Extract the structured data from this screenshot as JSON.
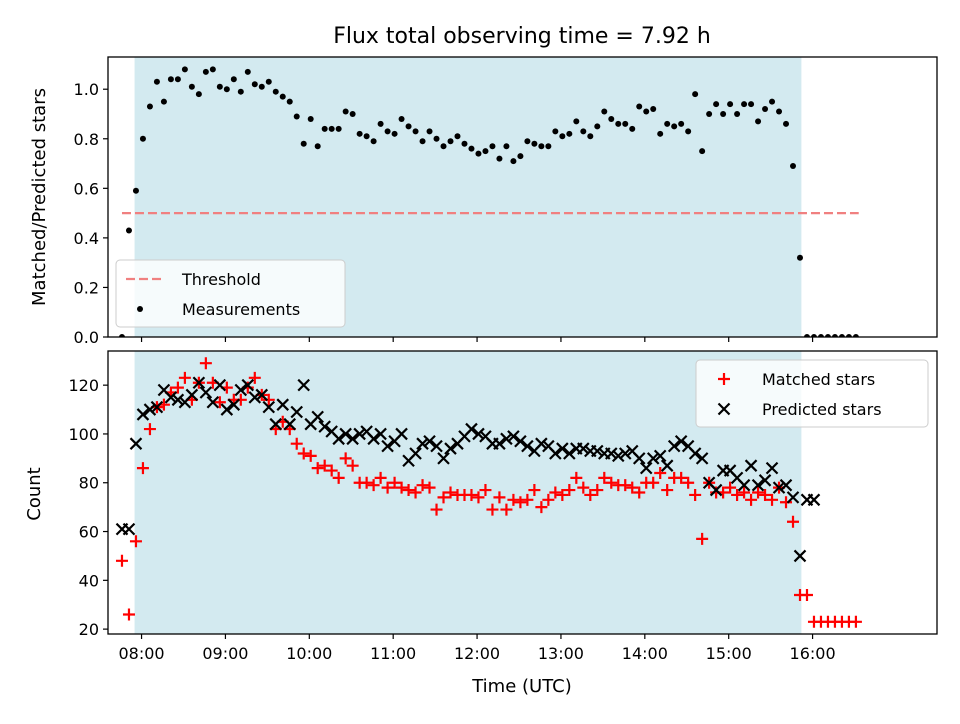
{
  "chart_data": [
    {
      "type": "scatter",
      "title": "Flux total observing time = 7.92 h",
      "ylabel": "Matched/Predicted stars",
      "xlabel": "",
      "ylim": [
        0,
        1.13
      ],
      "xlim": [
        "07:36",
        "17:29"
      ],
      "yticks": [
        "0.0",
        "0.2",
        "0.4",
        "0.6",
        "0.8",
        "1.0"
      ],
      "shaded_region": {
        "start": "07:55",
        "end": "15:52",
        "color": "#d3eaf0"
      },
      "threshold": {
        "name": "Threshold",
        "value": 0.5,
        "x_start": "07:46",
        "x_end": "16:33",
        "color": "#f08080"
      },
      "legend": {
        "position": "lower-left",
        "entries": [
          "Threshold",
          "Measurements"
        ]
      },
      "series": [
        {
          "name": "Measurements",
          "color": "#000000",
          "marker": "dot",
          "x": [
            "07:46",
            "07:51",
            "07:56",
            "08:01",
            "08:06",
            "08:11",
            "08:16",
            "08:21",
            "08:26",
            "08:31",
            "08:36",
            "08:41",
            "08:46",
            "08:51",
            "08:56",
            "09:01",
            "09:06",
            "09:11",
            "09:16",
            "09:21",
            "09:26",
            "09:31",
            "09:36",
            "09:41",
            "09:46",
            "09:51",
            "09:56",
            "10:01",
            "10:06",
            "10:11",
            "10:16",
            "10:21",
            "10:26",
            "10:31",
            "10:36",
            "10:41",
            "10:46",
            "10:51",
            "10:56",
            "11:01",
            "11:06",
            "11:11",
            "11:16",
            "11:21",
            "11:26",
            "11:31",
            "11:36",
            "11:41",
            "11:46",
            "11:51",
            "11:56",
            "12:01",
            "12:06",
            "12:11",
            "12:16",
            "12:21",
            "12:26",
            "12:31",
            "12:36",
            "12:41",
            "12:46",
            "12:51",
            "12:56",
            "13:01",
            "13:06",
            "13:11",
            "13:16",
            "13:21",
            "13:26",
            "13:31",
            "13:36",
            "13:41",
            "13:46",
            "13:51",
            "13:56",
            "14:01",
            "14:06",
            "14:11",
            "14:16",
            "14:21",
            "14:26",
            "14:31",
            "14:36",
            "14:41",
            "14:46",
            "14:51",
            "14:56",
            "15:01",
            "15:06",
            "15:11",
            "15:16",
            "15:21",
            "15:26",
            "15:31",
            "15:36",
            "15:41",
            "15:46",
            "15:51",
            "15:56",
            "16:01",
            "16:06",
            "16:11",
            "16:16",
            "16:21",
            "16:26",
            "16:31"
          ],
          "values": [
            0.0,
            0.43,
            0.59,
            0.8,
            0.93,
            1.03,
            0.95,
            1.04,
            1.04,
            1.08,
            1.01,
            0.98,
            1.07,
            1.08,
            1.01,
            1.0,
            1.04,
            0.99,
            1.07,
            1.02,
            1.01,
            1.03,
            0.99,
            0.97,
            0.95,
            0.89,
            0.78,
            0.88,
            0.77,
            0.84,
            0.84,
            0.84,
            0.91,
            0.9,
            0.82,
            0.81,
            0.79,
            0.86,
            0.83,
            0.82,
            0.88,
            0.85,
            0.83,
            0.79,
            0.83,
            0.8,
            0.77,
            0.79,
            0.81,
            0.78,
            0.76,
            0.74,
            0.75,
            0.77,
            0.72,
            0.77,
            0.71,
            0.73,
            0.79,
            0.78,
            0.77,
            0.77,
            0.83,
            0.81,
            0.82,
            0.87,
            0.83,
            0.81,
            0.85,
            0.91,
            0.88,
            0.86,
            0.86,
            0.84,
            0.93,
            0.91,
            0.92,
            0.82,
            0.86,
            0.85,
            0.86,
            0.83,
            0.98,
            0.75,
            0.9,
            0.94,
            0.9,
            0.94,
            0.9,
            0.94,
            0.94,
            0.87,
            0.92,
            0.95,
            0.91,
            0.86,
            0.69,
            0.32,
            0.0,
            0.0,
            0.0,
            0.0,
            0.0,
            0.0,
            0.0,
            0.0
          ]
        }
      ]
    },
    {
      "type": "scatter",
      "title": "",
      "ylabel": "Count",
      "xlabel": "Time (UTC)",
      "ylim": [
        18,
        134
      ],
      "xlim": [
        "07:36",
        "17:29"
      ],
      "yticks": [
        "20",
        "40",
        "60",
        "80",
        "100",
        "120"
      ],
      "xticks": [
        "08:00",
        "09:00",
        "10:00",
        "11:00",
        "12:00",
        "13:00",
        "14:00",
        "15:00",
        "16:00"
      ],
      "shaded_region": {
        "start": "07:55",
        "end": "15:52",
        "color": "#d3eaf0"
      },
      "legend": {
        "position": "top-right",
        "entries": [
          "Matched stars",
          "Predicted stars"
        ]
      },
      "series": [
        {
          "name": "Matched stars",
          "color": "#ff0000",
          "marker": "plus",
          "x": [
            "07:46",
            "07:51",
            "07:56",
            "08:01",
            "08:06",
            "08:11",
            "08:16",
            "08:21",
            "08:26",
            "08:31",
            "08:36",
            "08:41",
            "08:46",
            "08:51",
            "08:56",
            "09:01",
            "09:06",
            "09:11",
            "09:16",
            "09:21",
            "09:26",
            "09:31",
            "09:36",
            "09:41",
            "09:46",
            "09:51",
            "09:56",
            "10:01",
            "10:06",
            "10:11",
            "10:16",
            "10:21",
            "10:26",
            "10:31",
            "10:36",
            "10:41",
            "10:46",
            "10:51",
            "10:56",
            "11:01",
            "11:06",
            "11:11",
            "11:16",
            "11:21",
            "11:26",
            "11:31",
            "11:36",
            "11:41",
            "11:46",
            "11:51",
            "11:56",
            "12:01",
            "12:06",
            "12:11",
            "12:16",
            "12:21",
            "12:26",
            "12:31",
            "12:36",
            "12:41",
            "12:46",
            "12:51",
            "12:56",
            "13:01",
            "13:06",
            "13:11",
            "13:16",
            "13:21",
            "13:26",
            "13:31",
            "13:36",
            "13:41",
            "13:46",
            "13:51",
            "13:56",
            "14:01",
            "14:06",
            "14:11",
            "14:16",
            "14:21",
            "14:26",
            "14:31",
            "14:36",
            "14:41",
            "14:46",
            "14:51",
            "14:56",
            "15:01",
            "15:06",
            "15:11",
            "15:16",
            "15:21",
            "15:26",
            "15:31",
            "15:36",
            "15:41",
            "15:46",
            "15:51",
            "15:56",
            "16:01",
            "16:06",
            "16:11",
            "16:16",
            "16:21",
            "16:26",
            "16:31"
          ],
          "values": [
            48,
            26,
            56,
            86,
            102,
            111,
            112,
            117,
            119,
            123,
            114,
            121,
            129,
            121,
            113,
            119,
            114,
            114,
            119,
            123,
            116,
            114,
            102,
            105,
            102,
            96,
            92,
            91,
            86,
            87,
            85,
            82,
            90,
            87,
            80,
            80,
            79,
            82,
            78,
            80,
            78,
            77,
            76,
            79,
            78,
            69,
            74,
            76,
            75,
            75,
            75,
            74,
            77,
            69,
            74,
            69,
            73,
            72,
            73,
            77,
            70,
            73,
            76,
            75,
            77,
            82,
            78,
            75,
            77,
            82,
            80,
            79,
            79,
            78,
            76,
            80,
            80,
            84,
            77,
            82,
            82,
            80,
            75,
            57,
            80,
            76,
            76,
            78,
            75,
            76,
            73,
            76,
            75,
            73,
            78,
            72,
            64,
            34,
            34,
            23,
            23,
            23,
            23,
            23,
            23,
            23
          ]
        },
        {
          "name": "Predicted stars",
          "color": "#000000",
          "marker": "x",
          "x": [
            "07:46",
            "07:51",
            "07:56",
            "08:01",
            "08:06",
            "08:11",
            "08:16",
            "08:21",
            "08:26",
            "08:31",
            "08:36",
            "08:41",
            "08:46",
            "08:51",
            "08:56",
            "09:01",
            "09:06",
            "09:11",
            "09:16",
            "09:21",
            "09:26",
            "09:31",
            "09:36",
            "09:41",
            "09:46",
            "09:51",
            "09:56",
            "10:01",
            "10:06",
            "10:11",
            "10:16",
            "10:21",
            "10:26",
            "10:31",
            "10:36",
            "10:41",
            "10:46",
            "10:51",
            "10:56",
            "11:01",
            "11:06",
            "11:11",
            "11:16",
            "11:21",
            "11:26",
            "11:31",
            "11:36",
            "11:41",
            "11:46",
            "11:51",
            "11:56",
            "12:01",
            "12:06",
            "12:11",
            "12:16",
            "12:21",
            "12:26",
            "12:31",
            "12:36",
            "12:41",
            "12:46",
            "12:51",
            "12:56",
            "13:01",
            "13:06",
            "13:11",
            "13:16",
            "13:21",
            "13:26",
            "13:31",
            "13:36",
            "13:41",
            "13:46",
            "13:51",
            "13:56",
            "14:01",
            "14:06",
            "14:11",
            "14:16",
            "14:21",
            "14:26",
            "14:31",
            "14:36",
            "14:41",
            "14:46",
            "14:51",
            "14:56",
            "15:01",
            "15:06",
            "15:11",
            "15:16",
            "15:21",
            "15:26",
            "15:31",
            "15:36",
            "15:41",
            "15:46",
            "15:51",
            "15:56",
            "16:01"
          ],
          "values": [
            61,
            61,
            96,
            108,
            110,
            111,
            118,
            115,
            114,
            113,
            116,
            121,
            117,
            113,
            120,
            110,
            112,
            118,
            120,
            115,
            116,
            111,
            104,
            112,
            104,
            109,
            120,
            104,
            107,
            103,
            101,
            98,
            100,
            98,
            100,
            101,
            98,
            100,
            95,
            97,
            100,
            89,
            92,
            96,
            97,
            95,
            90,
            94,
            96,
            99,
            102,
            100,
            99,
            96,
            96,
            98,
            99,
            97,
            95,
            93,
            96,
            95,
            92,
            94,
            92,
            94,
            94,
            93,
            93,
            92,
            92,
            91,
            92,
            93,
            90,
            86,
            90,
            91,
            87,
            95,
            97,
            95,
            92,
            90,
            80,
            77,
            85,
            85,
            82,
            79,
            87,
            79,
            81,
            86,
            78,
            79,
            74,
            50,
            73,
            73
          ]
        }
      ]
    }
  ]
}
